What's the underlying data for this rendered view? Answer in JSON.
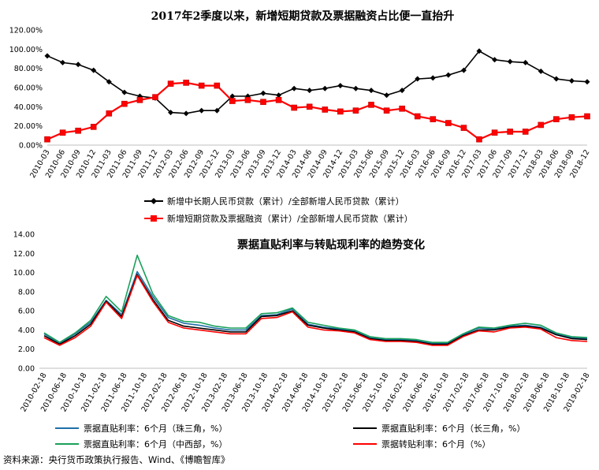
{
  "source_note": "资料来源：央行货币政策执行报告、Wind、《博瞻智库》",
  "chart_data": [
    {
      "type": "line",
      "title": "2017年2季度以来，新增短期贷款及票据融资占比便一直抬升",
      "ylim": [
        0,
        120
      ],
      "y_ticks": [
        "0.00%",
        "20.00%",
        "40.00%",
        "60.00%",
        "80.00%",
        "100.00%",
        "120.00%"
      ],
      "categories": [
        "2010-03",
        "2010-06",
        "2010-09",
        "2010-12",
        "2011-03",
        "2011-06",
        "2011-09",
        "2011-12",
        "2012-03",
        "2012-06",
        "2012-09",
        "2012-12",
        "2013-03",
        "2013-06",
        "2013-09",
        "2013-12",
        "2014-03",
        "2014-06",
        "2014-09",
        "2014-12",
        "2015-03",
        "2015-06",
        "2015-09",
        "2015-12",
        "2016-03",
        "2016-06",
        "2016-09",
        "2016-12",
        "2017-03",
        "2017-06",
        "2017-09",
        "2017-12",
        "2018-03",
        "2018-06",
        "2018-09",
        "2018-12"
      ],
      "series": [
        {
          "name": "新增中长期人民币贷款（累计）/全部新增人民币贷款（累计）",
          "color": "#000000",
          "marker": "diamond",
          "values": [
            93,
            86,
            84,
            78,
            66,
            55,
            51,
            49,
            34,
            33,
            36,
            36,
            51,
            51,
            54,
            52,
            59,
            57,
            59,
            62,
            59,
            57,
            52,
            57,
            69,
            70,
            73,
            78,
            98,
            89,
            87,
            86,
            77,
            69,
            67,
            66
          ]
        },
        {
          "name": "新增短期贷款及票据融资（累计）/全部新增人民币贷款（累计）",
          "color": "#ff0000",
          "marker": "square",
          "values": [
            6,
            13,
            15,
            19,
            33,
            43,
            47,
            50,
            64,
            65,
            62,
            62,
            46,
            47,
            45,
            47,
            39,
            40,
            37,
            35,
            36,
            42,
            36,
            38,
            30,
            27,
            23,
            18,
            6,
            13,
            14,
            14,
            21,
            27,
            29,
            30
          ]
        }
      ],
      "legend_position": "bottom",
      "grid": false
    },
    {
      "type": "line",
      "title": "票据直贴利率与转贴现利率的趋势变化",
      "ylim": [
        0,
        14
      ],
      "y_ticks": [
        "0.00",
        "2.00",
        "4.00",
        "6.00",
        "8.00",
        "10.00",
        "12.00",
        "14.00"
      ],
      "x_ticks": [
        "2010-02-18",
        "2010-06-18",
        "2010-10-18",
        "2011-02-18",
        "2011-06-18",
        "2011-10-18",
        "2012-02-18",
        "2012-06-18",
        "2012-10-18",
        "2013-02-18",
        "2013-06-18",
        "2013-10-18",
        "2014-02-18",
        "2014-06-18",
        "2014-10-18",
        "2015-02-18",
        "2015-06-18",
        "2015-10-18",
        "2016-02-18",
        "2016-06-18",
        "2016-10-18",
        "2017-02-18",
        "2017-06-18",
        "2017-10-18",
        "2018-02-18",
        "2018-06-18",
        "2018-10-18",
        "2019-02-18"
      ],
      "series": [
        {
          "name": "票据直贴利率：6个月（珠三角，%）",
          "color": "#1f6fa8",
          "values": [
            3.6,
            2.6,
            3.6,
            4.8,
            7.1,
            5.6,
            10.1,
            7.5,
            5.3,
            4.7,
            4.5,
            4.2,
            4.0,
            4.0,
            5.5,
            5.6,
            6.2,
            4.6,
            4.3,
            4.1,
            3.9,
            3.2,
            3.0,
            3.0,
            2.9,
            2.6,
            2.6,
            3.5,
            4.2,
            4.1,
            4.4,
            4.5,
            4.3,
            3.6,
            3.2,
            3.1
          ]
        },
        {
          "name": "票据直贴利率：6个月（长三角，%）",
          "color": "#000000",
          "values": [
            3.4,
            2.5,
            3.4,
            4.6,
            7.0,
            5.4,
            9.8,
            7.2,
            5.0,
            4.4,
            4.2,
            4.0,
            3.8,
            3.8,
            5.4,
            5.5,
            6.0,
            4.5,
            4.2,
            4.0,
            3.8,
            3.1,
            2.9,
            2.9,
            2.8,
            2.5,
            2.5,
            3.4,
            4.0,
            4.0,
            4.3,
            4.4,
            4.2,
            3.5,
            3.1,
            3.0
          ]
        },
        {
          "name": "票据直贴利率：6个月（中西部，%）",
          "color": "#1aa05a",
          "values": [
            3.7,
            2.7,
            3.7,
            5.0,
            7.5,
            5.9,
            11.8,
            7.8,
            5.5,
            4.9,
            4.8,
            4.4,
            4.2,
            4.2,
            5.7,
            5.8,
            6.3,
            4.8,
            4.5,
            4.2,
            4.0,
            3.3,
            3.1,
            3.1,
            3.0,
            2.7,
            2.7,
            3.6,
            4.3,
            4.2,
            4.5,
            4.7,
            4.5,
            3.7,
            3.3,
            3.2
          ]
        },
        {
          "name": "票据转贴利率：6个月（%）",
          "color": "#ff0000",
          "values": [
            3.2,
            2.4,
            3.2,
            4.4,
            6.9,
            5.2,
            9.7,
            7.0,
            4.8,
            4.2,
            4.0,
            3.8,
            3.6,
            3.6,
            5.2,
            5.3,
            5.9,
            4.3,
            4.0,
            3.9,
            3.7,
            3.0,
            2.8,
            2.8,
            2.7,
            2.4,
            2.4,
            3.3,
            3.9,
            3.8,
            4.2,
            4.3,
            4.1,
            3.2,
            2.9,
            2.8
          ]
        }
      ],
      "legend_position": "bottom",
      "grid": false
    }
  ]
}
